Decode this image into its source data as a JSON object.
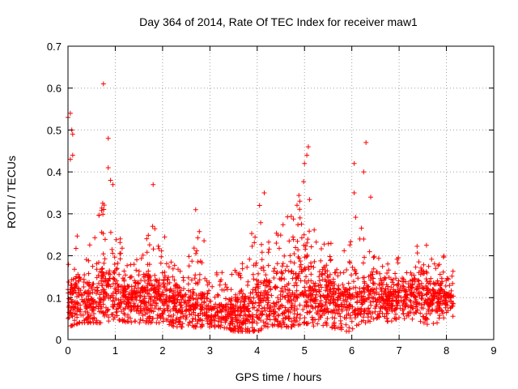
{
  "chart_data": {
    "type": "scatter",
    "title": "Day 364 of 2014, Rate Of TEC Index for receiver maw1",
    "xlabel": "GPS time / hours",
    "ylabel": "ROTI / TECUs",
    "xlim": [
      0,
      9
    ],
    "ylim": [
      0,
      0.7
    ],
    "x_ticks": [
      "0",
      "1",
      "2",
      "3",
      "4",
      "5",
      "6",
      "7",
      "8",
      "9"
    ],
    "y_ticks": [
      "0",
      "0.1",
      "0.2",
      "0.3",
      "0.4",
      "0.5",
      "0.6",
      "0.7"
    ],
    "grid": true,
    "marker": "+",
    "color": "#ff0000",
    "data_extent_x": [
      0,
      8.15
    ],
    "notable_points": [
      {
        "x": 0.0,
        "y": 0.53
      },
      {
        "x": 0.05,
        "y": 0.54
      },
      {
        "x": 0.08,
        "y": 0.5
      },
      {
        "x": 0.1,
        "y": 0.49
      },
      {
        "x": 0.05,
        "y": 0.43
      },
      {
        "x": 0.1,
        "y": 0.44
      },
      {
        "x": 0.75,
        "y": 0.61
      },
      {
        "x": 0.85,
        "y": 0.48
      },
      {
        "x": 0.85,
        "y": 0.41
      },
      {
        "x": 0.9,
        "y": 0.38
      },
      {
        "x": 0.95,
        "y": 0.37
      },
      {
        "x": 1.8,
        "y": 0.37
      },
      {
        "x": 2.7,
        "y": 0.31
      },
      {
        "x": 4.05,
        "y": 0.32
      },
      {
        "x": 4.15,
        "y": 0.35
      },
      {
        "x": 4.9,
        "y": 0.33
      },
      {
        "x": 5.0,
        "y": 0.42
      },
      {
        "x": 5.05,
        "y": 0.44
      },
      {
        "x": 5.08,
        "y": 0.46
      },
      {
        "x": 6.05,
        "y": 0.42
      },
      {
        "x": 6.05,
        "y": 0.35
      },
      {
        "x": 6.3,
        "y": 0.47
      },
      {
        "x": 6.25,
        "y": 0.4
      },
      {
        "x": 6.4,
        "y": 0.34
      }
    ],
    "envelope": {
      "x": [
        0,
        0.25,
        0.5,
        0.75,
        1,
        1.25,
        1.5,
        1.75,
        2,
        2.25,
        2.5,
        2.75,
        3,
        3.25,
        3.5,
        3.75,
        4,
        4.25,
        4.5,
        4.75,
        5,
        5.25,
        5.5,
        5.75,
        6,
        6.25,
        6.5,
        6.75,
        7,
        7.25,
        7.5,
        7.75,
        8,
        8.15
      ],
      "low": [
        0.03,
        0.04,
        0.04,
        0.04,
        0.05,
        0.04,
        0.04,
        0.04,
        0.04,
        0.03,
        0.03,
        0.03,
        0.03,
        0.03,
        0.02,
        0.02,
        0.02,
        0.03,
        0.03,
        0.03,
        0.04,
        0.03,
        0.03,
        0.02,
        0.02,
        0.03,
        0.04,
        0.04,
        0.05,
        0.05,
        0.04,
        0.03,
        0.04,
        0.05
      ],
      "high": [
        0.3,
        0.27,
        0.23,
        0.34,
        0.28,
        0.2,
        0.22,
        0.28,
        0.26,
        0.18,
        0.17,
        0.3,
        0.18,
        0.16,
        0.17,
        0.2,
        0.31,
        0.25,
        0.27,
        0.34,
        0.42,
        0.32,
        0.26,
        0.24,
        0.3,
        0.28,
        0.22,
        0.18,
        0.2,
        0.23,
        0.25,
        0.2,
        0.2,
        0.17
      ],
      "center": [
        0.09,
        0.1,
        0.09,
        0.1,
        0.11,
        0.1,
        0.1,
        0.11,
        0.1,
        0.09,
        0.08,
        0.08,
        0.07,
        0.06,
        0.06,
        0.07,
        0.08,
        0.09,
        0.09,
        0.1,
        0.12,
        0.11,
        0.11,
        0.1,
        0.09,
        0.1,
        0.1,
        0.09,
        0.1,
        0.11,
        0.11,
        0.1,
        0.1,
        0.1
      ]
    }
  }
}
